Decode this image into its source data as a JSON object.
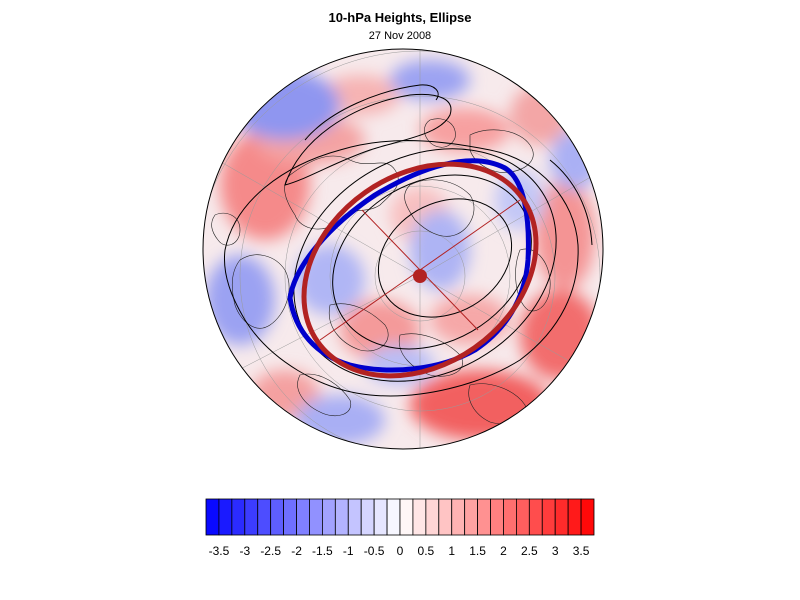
{
  "header": {
    "title": "10-hPa Heights, Ellipse",
    "date": "27 Nov 2008"
  },
  "map": {
    "projection": "polar-stereographic",
    "hemisphere": "north",
    "fill_field": "height-anomaly",
    "contour_color": "#000000",
    "ellipse_color": "#b22222",
    "edge_contour_color": "#0000cc",
    "center_marker_color": "#b22222"
  },
  "colorbar": {
    "tick_labels": [
      "-3.5",
      "-3",
      "-2.5",
      "-2",
      "-1.5",
      "-1",
      "-0.5",
      "0",
      "0.5",
      "1",
      "1.5",
      "2",
      "2.5",
      "3",
      "3.5"
    ],
    "range": [
      -3.75,
      3.75
    ],
    "step": 0.25,
    "neg_color": "#0000ff",
    "pos_color": "#ff0000",
    "mid_color": "#ffffff"
  }
}
